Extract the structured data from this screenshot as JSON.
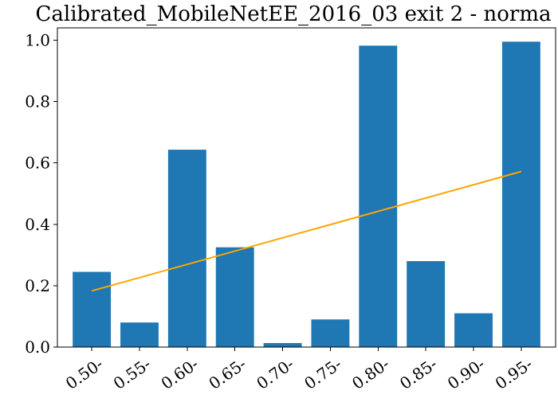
{
  "chart_data": {
    "type": "bar",
    "title": "Calibrated_MobileNetEE_2016_03 exit 2 - norma",
    "xlabel": "",
    "ylabel": "",
    "categories": [
      "0.50-",
      "0.55-",
      "0.60-",
      "0.65-",
      "0.70-",
      "0.75-",
      "0.80-",
      "0.85-",
      "0.90-",
      "0.95-"
    ],
    "values": [
      0.245,
      0.08,
      0.643,
      0.325,
      0.013,
      0.09,
      0.982,
      0.28,
      0.11,
      0.995
    ],
    "ylim": [
      0,
      1.04
    ],
    "yticks": [
      0.0,
      0.2,
      0.4,
      0.6,
      0.8,
      1.0
    ],
    "ytick_labels": [
      "0.0",
      "0.2",
      "0.4",
      "0.6",
      "0.8",
      "1.0"
    ],
    "trend_line": {
      "start": 0.183,
      "end": 0.572
    },
    "grid": false,
    "legend": "none",
    "colors": {
      "bar": "#1f77b4",
      "trend": "#ffa500"
    }
  }
}
